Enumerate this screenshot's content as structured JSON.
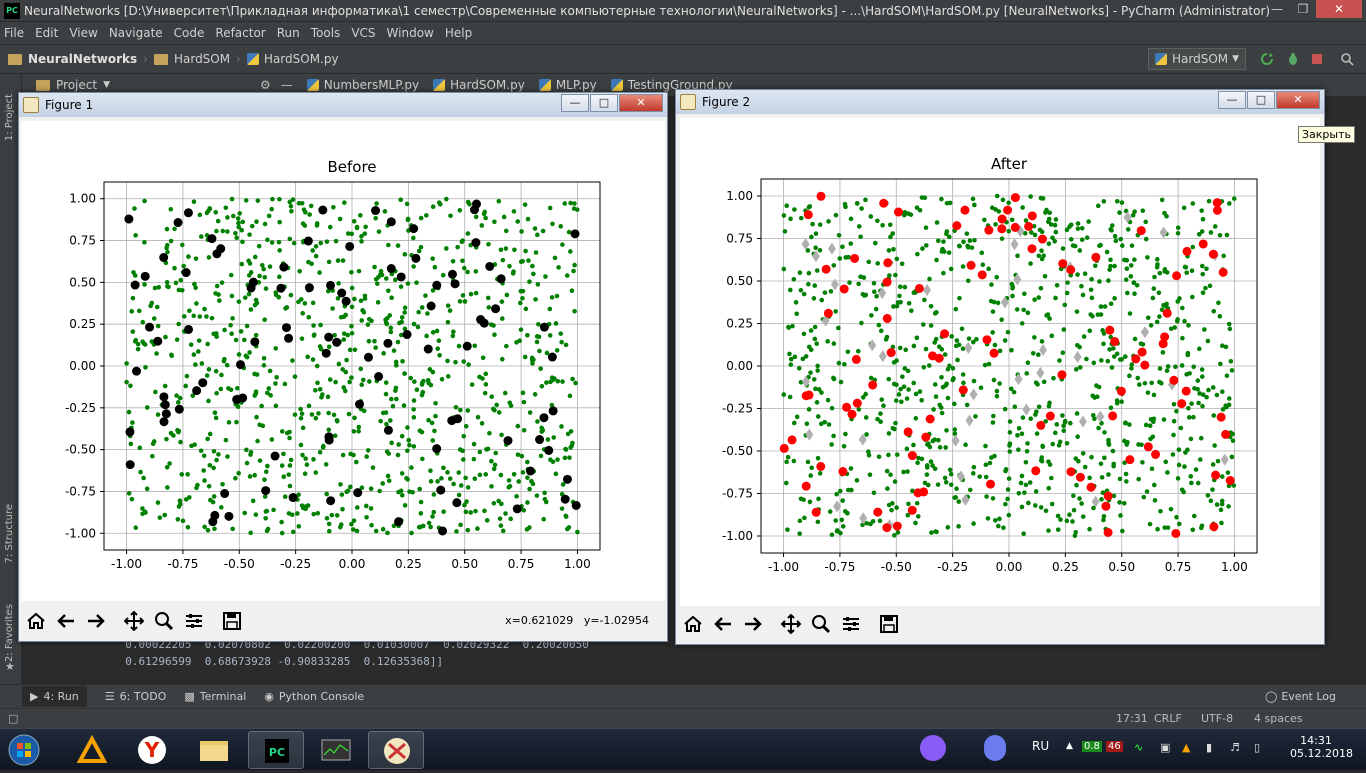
{
  "window": {
    "title": "NeuralNetworks [D:\\Университет\\Прикладная информатика\\1 семестр\\Современные компьютерные технологии\\NeuralNetworks] - ...\\HardSOM\\HardSOM.py [NeuralNetworks] - PyCharm (Administrator)",
    "app_icon": "PC"
  },
  "menu": [
    "File",
    "Edit",
    "View",
    "Navigate",
    "Code",
    "Refactor",
    "Run",
    "Tools",
    "VCS",
    "Window",
    "Help"
  ],
  "breadcrumb": {
    "project": "NeuralNetworks",
    "folder": "HardSOM",
    "file": "HardSOM.py"
  },
  "run_config": "HardSOM",
  "project_panel": {
    "label": "Project"
  },
  "tool_windows": {
    "project": "1: Project",
    "structure": "7: Structure",
    "favorites": "2: Favorites"
  },
  "editor_tabs": [
    "NumbersMLP.py",
    "HardSOM.py",
    "MLP.py",
    "TestingGround.py"
  ],
  "console": {
    "lines": [
      "  0.00022205  0.02070802  0.02200200  0.01030007  0.02029322  0.20020050",
      "  0.61296599  0.68673928 -0.90833285  0.12635368]]"
    ]
  },
  "bottom_tabs": [
    "4: Run",
    "6: TODO",
    "Terminal",
    "Python Console"
  ],
  "event_log": "Event Log",
  "status": {
    "position": "17:31",
    "line_sep": "CRLF",
    "encoding": "UTF-8",
    "indent": "4 spaces"
  },
  "figure1": {
    "title": "Figure 1",
    "coords_x": "x=0.621029",
    "coords_y": "y=-1.02954"
  },
  "figure2": {
    "title": "Figure 2",
    "close_tooltip": "Закрыть"
  },
  "taskbar": {
    "language": "RU",
    "time": "14:31",
    "date": "05.12.2018",
    "tray_badges": [
      "0.8",
      "46"
    ]
  },
  "colors": {
    "green_points": "#008000",
    "black_neurons": "#000000",
    "red_neurons": "#ff0000",
    "gray_neurons": "#b0b0b0"
  },
  "chart_data": [
    {
      "type": "scatter",
      "title": "Before",
      "xlim": [
        -1.1,
        1.1
      ],
      "ylim": [
        -1.1,
        1.1
      ],
      "xticks": [
        "-1.00",
        "-0.75",
        "-0.50",
        "-0.25",
        "0.00",
        "0.25",
        "0.50",
        "0.75",
        "1.00"
      ],
      "yticks": [
        "-1.00",
        "-0.75",
        "-0.50",
        "-0.25",
        "0.00",
        "0.25",
        "0.50",
        "0.75",
        "1.00"
      ],
      "grid": true,
      "series": [
        {
          "marker": "small-dot",
          "color": "#008000",
          "count": 1000,
          "distribution": "uniform"
        },
        {
          "marker": "large-dot",
          "color": "#000000",
          "count": 100,
          "distribution": "uniform"
        }
      ]
    },
    {
      "type": "scatter",
      "title": "After",
      "xlim": [
        -1.1,
        1.1
      ],
      "ylim": [
        -1.1,
        1.1
      ],
      "xticks": [
        "-1.00",
        "-0.75",
        "-0.50",
        "-0.25",
        "0.00",
        "0.25",
        "0.50",
        "0.75",
        "1.00"
      ],
      "yticks": [
        "-1.00",
        "-0.75",
        "-0.50",
        "-0.25",
        "0.00",
        "0.25",
        "0.50",
        "0.75",
        "1.00"
      ],
      "grid": true,
      "series": [
        {
          "marker": "small-dot",
          "color": "#008000",
          "count": 1000,
          "distribution": "uniform"
        },
        {
          "marker": "diamond",
          "color": "#b0b0b0",
          "count": 40,
          "distribution": "uniform"
        },
        {
          "marker": "large-dot",
          "color": "#ff0000",
          "count": 100,
          "distribution": "uniform"
        }
      ]
    }
  ]
}
